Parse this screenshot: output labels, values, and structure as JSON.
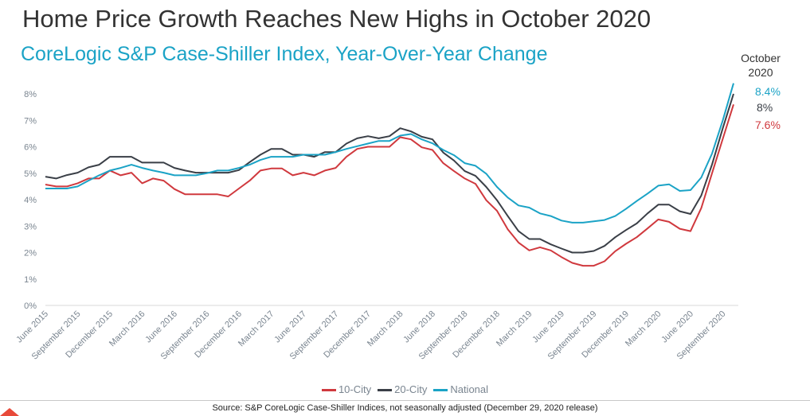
{
  "title": "Home Price Growth Reaches New Highs in October 2020",
  "subtitle": "CoreLogic S&P Case-Shiller Index, Year-Over-Year Change",
  "source": "Source:  S&P CoreLogic Case-Shiller Indices, not seasonally adjusted (December 29, 2020 release)",
  "chart_data": {
    "type": "line",
    "x_start": "June 2015",
    "x_end": "October 2020",
    "x_frequency": "monthly",
    "xtick_labels": [
      "June 2015",
      "September 2015",
      "December 2015",
      "March 2016",
      "June 2016",
      "September 2016",
      "December 2016",
      "March 2017",
      "June 2017",
      "September 2017",
      "December 2017",
      "March 2018",
      "June 2018",
      "September 2018",
      "December 2018",
      "March 2019",
      "June 2019",
      "September 2019",
      "December 2019",
      "March 2020",
      "June 2020",
      "September 2020"
    ],
    "yticks": [
      "0%",
      "1%",
      "2%",
      "3%",
      "4%",
      "5%",
      "6%",
      "7%",
      "8%"
    ],
    "ylim": [
      0,
      8
    ],
    "grid": false,
    "legend_placement": "bottom",
    "annotation": {
      "line1": "October",
      "line2": "2020",
      "labels": [
        "8.4%",
        "8%",
        "7.6%"
      ]
    },
    "series": [
      {
        "name": "10-City",
        "color": "#d0393e",
        "values": [
          4.57,
          4.5,
          4.5,
          4.62,
          4.8,
          4.8,
          5.1,
          4.92,
          5.02,
          4.62,
          4.8,
          4.72,
          4.4,
          4.2,
          4.2,
          4.2,
          4.2,
          4.12,
          4.42,
          4.72,
          5.1,
          5.18,
          5.18,
          4.92,
          5.02,
          4.92,
          5.1,
          5.2,
          5.62,
          5.92,
          6.0,
          6.0,
          6.0,
          6.36,
          6.28,
          5.98,
          5.88,
          5.38,
          5.08,
          4.8,
          4.6,
          3.98,
          3.58,
          2.88,
          2.38,
          2.08,
          2.2,
          2.08,
          1.83,
          1.61,
          1.5,
          1.5,
          1.67,
          2.05,
          2.33,
          2.58,
          2.91,
          3.25,
          3.16,
          2.9,
          2.81,
          3.68,
          5.0,
          6.3,
          7.6
        ]
      },
      {
        "name": "20-City",
        "color": "#3a3f47",
        "values": [
          4.87,
          4.8,
          4.93,
          5.02,
          5.22,
          5.32,
          5.62,
          5.62,
          5.62,
          5.4,
          5.4,
          5.4,
          5.2,
          5.1,
          5.02,
          5.02,
          5.02,
          5.02,
          5.12,
          5.42,
          5.7,
          5.92,
          5.92,
          5.7,
          5.7,
          5.62,
          5.8,
          5.8,
          6.12,
          6.32,
          6.4,
          6.32,
          6.4,
          6.7,
          6.58,
          6.38,
          6.28,
          5.78,
          5.48,
          5.08,
          4.9,
          4.48,
          3.98,
          3.38,
          2.81,
          2.51,
          2.51,
          2.31,
          2.15,
          2.0,
          2.0,
          2.06,
          2.25,
          2.58,
          2.85,
          3.1,
          3.48,
          3.81,
          3.81,
          3.56,
          3.46,
          4.16,
          5.33,
          6.7,
          8.0
        ]
      },
      {
        "name": "National",
        "color": "#1ba3c6",
        "values": [
          4.42,
          4.42,
          4.42,
          4.5,
          4.72,
          4.92,
          5.1,
          5.2,
          5.32,
          5.2,
          5.1,
          5.02,
          4.92,
          4.92,
          4.92,
          5.0,
          5.1,
          5.1,
          5.2,
          5.32,
          5.5,
          5.62,
          5.62,
          5.62,
          5.7,
          5.7,
          5.7,
          5.8,
          5.92,
          6.02,
          6.12,
          6.22,
          6.22,
          6.42,
          6.48,
          6.28,
          6.13,
          5.88,
          5.68,
          5.38,
          5.28,
          4.98,
          4.48,
          4.08,
          3.78,
          3.7,
          3.48,
          3.38,
          3.21,
          3.13,
          3.13,
          3.18,
          3.23,
          3.38,
          3.65,
          3.95,
          4.23,
          4.53,
          4.58,
          4.33,
          4.36,
          4.84,
          5.74,
          7.0,
          8.4
        ]
      }
    ]
  }
}
